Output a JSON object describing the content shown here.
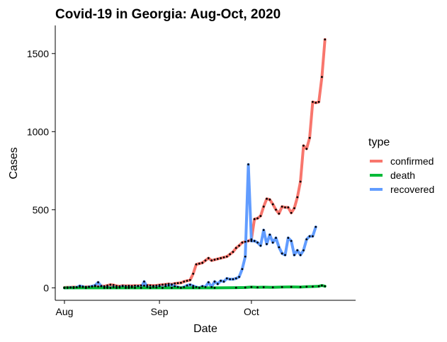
{
  "chart_data": {
    "type": "line",
    "title": "Covid-19 in Georgia: Aug-Oct, 2020",
    "xlabel": "Date",
    "ylabel": "Cases",
    "x_ticks": [
      {
        "label": "Aug",
        "value": "2020-08-01"
      },
      {
        "label": "Sep",
        "value": "2020-09-01"
      },
      {
        "label": "Oct",
        "value": "2020-10-01"
      }
    ],
    "y_ticks": [
      0,
      500,
      1000,
      1500
    ],
    "xlim": [
      "2020-07-29",
      "2020-11-04"
    ],
    "ylim": [
      -80,
      1680
    ],
    "grid": false,
    "legend": {
      "title": "type",
      "placement": "right",
      "entries": [
        "confirmed",
        "death",
        "recovered"
      ]
    },
    "colors": {
      "confirmed": "#F8766D",
      "death": "#00BA38",
      "recovered": "#619CFF"
    },
    "series": [
      {
        "name": "confirmed",
        "points": [
          [
            "2020-08-01",
            2
          ],
          [
            "2020-08-02",
            3
          ],
          [
            "2020-08-03",
            3
          ],
          [
            "2020-08-04",
            5
          ],
          [
            "2020-08-05",
            4
          ],
          [
            "2020-08-06",
            6
          ],
          [
            "2020-08-07",
            5
          ],
          [
            "2020-08-08",
            6
          ],
          [
            "2020-08-09",
            7
          ],
          [
            "2020-08-10",
            8
          ],
          [
            "2020-08-11",
            10
          ],
          [
            "2020-08-12",
            8
          ],
          [
            "2020-08-13",
            12
          ],
          [
            "2020-08-14",
            10
          ],
          [
            "2020-08-15",
            15
          ],
          [
            "2020-08-16",
            20
          ],
          [
            "2020-08-17",
            18
          ],
          [
            "2020-08-18",
            12
          ],
          [
            "2020-08-19",
            10
          ],
          [
            "2020-08-20",
            14
          ],
          [
            "2020-08-21",
            12
          ],
          [
            "2020-08-22",
            13
          ],
          [
            "2020-08-23",
            12
          ],
          [
            "2020-08-24",
            14
          ],
          [
            "2020-08-25",
            13
          ],
          [
            "2020-08-26",
            15
          ],
          [
            "2020-08-27",
            14
          ],
          [
            "2020-08-28",
            16
          ],
          [
            "2020-08-29",
            15
          ],
          [
            "2020-08-30",
            14
          ],
          [
            "2020-08-31",
            15
          ],
          [
            "2020-09-01",
            18
          ],
          [
            "2020-09-02",
            20
          ],
          [
            "2020-09-03",
            22
          ],
          [
            "2020-09-04",
            25
          ],
          [
            "2020-09-05",
            22
          ],
          [
            "2020-09-06",
            28
          ],
          [
            "2020-09-07",
            30
          ],
          [
            "2020-09-08",
            32
          ],
          [
            "2020-09-09",
            40
          ],
          [
            "2020-09-10",
            45
          ],
          [
            "2020-09-11",
            50
          ],
          [
            "2020-09-12",
            90
          ],
          [
            "2020-09-13",
            150
          ],
          [
            "2020-09-14",
            155
          ],
          [
            "2020-09-15",
            160
          ],
          [
            "2020-09-16",
            175
          ],
          [
            "2020-09-17",
            190
          ],
          [
            "2020-09-18",
            175
          ],
          [
            "2020-09-19",
            180
          ],
          [
            "2020-09-20",
            185
          ],
          [
            "2020-09-21",
            190
          ],
          [
            "2020-09-22",
            195
          ],
          [
            "2020-09-23",
            200
          ],
          [
            "2020-09-24",
            215
          ],
          [
            "2020-09-25",
            230
          ],
          [
            "2020-09-26",
            255
          ],
          [
            "2020-09-27",
            270
          ],
          [
            "2020-09-28",
            290
          ],
          [
            "2020-09-29",
            295
          ],
          [
            "2020-09-30",
            300
          ],
          [
            "2020-10-01",
            310
          ],
          [
            "2020-10-02",
            440
          ],
          [
            "2020-10-03",
            445
          ],
          [
            "2020-10-04",
            460
          ],
          [
            "2020-10-05",
            520
          ],
          [
            "2020-10-06",
            570
          ],
          [
            "2020-10-07",
            565
          ],
          [
            "2020-10-08",
            535
          ],
          [
            "2020-10-09",
            500
          ],
          [
            "2020-10-10",
            475
          ],
          [
            "2020-10-11",
            520
          ],
          [
            "2020-10-12",
            515
          ],
          [
            "2020-10-13",
            515
          ],
          [
            "2020-10-14",
            480
          ],
          [
            "2020-10-15",
            510
          ],
          [
            "2020-10-16",
            580
          ],
          [
            "2020-10-17",
            680
          ],
          [
            "2020-10-18",
            910
          ],
          [
            "2020-10-19",
            890
          ],
          [
            "2020-10-20",
            960
          ],
          [
            "2020-10-21",
            1190
          ],
          [
            "2020-10-22",
            1185
          ],
          [
            "2020-10-23",
            1190
          ],
          [
            "2020-10-24",
            1350
          ],
          [
            "2020-10-25",
            1590
          ]
        ]
      },
      {
        "name": "death",
        "points": [
          [
            "2020-08-01",
            0
          ],
          [
            "2020-08-08",
            0
          ],
          [
            "2020-08-15",
            0
          ],
          [
            "2020-08-22",
            0
          ],
          [
            "2020-08-29",
            0
          ],
          [
            "2020-09-05",
            0
          ],
          [
            "2020-09-12",
            0
          ],
          [
            "2020-09-19",
            0
          ],
          [
            "2020-09-26",
            1
          ],
          [
            "2020-09-29",
            2
          ],
          [
            "2020-10-01",
            5
          ],
          [
            "2020-10-03",
            3
          ],
          [
            "2020-10-05",
            4
          ],
          [
            "2020-10-08",
            3
          ],
          [
            "2020-10-11",
            5
          ],
          [
            "2020-10-14",
            6
          ],
          [
            "2020-10-17",
            5
          ],
          [
            "2020-10-19",
            7
          ],
          [
            "2020-10-21",
            8
          ],
          [
            "2020-10-23",
            10
          ],
          [
            "2020-10-24",
            15
          ],
          [
            "2020-10-25",
            10
          ]
        ]
      },
      {
        "name": "recovered",
        "points": [
          [
            "2020-08-01",
            0
          ],
          [
            "2020-08-02",
            0
          ],
          [
            "2020-08-03",
            2
          ],
          [
            "2020-08-04",
            0
          ],
          [
            "2020-08-05",
            3
          ],
          [
            "2020-08-06",
            12
          ],
          [
            "2020-08-07",
            8
          ],
          [
            "2020-08-08",
            0
          ],
          [
            "2020-08-09",
            5
          ],
          [
            "2020-08-10",
            10
          ],
          [
            "2020-08-11",
            15
          ],
          [
            "2020-08-12",
            35
          ],
          [
            "2020-08-13",
            10
          ],
          [
            "2020-08-14",
            0
          ],
          [
            "2020-08-15",
            5
          ],
          [
            "2020-08-16",
            0
          ],
          [
            "2020-08-17",
            5
          ],
          [
            "2020-08-18",
            0
          ],
          [
            "2020-08-19",
            2
          ],
          [
            "2020-08-20",
            10
          ],
          [
            "2020-08-21",
            0
          ],
          [
            "2020-08-22",
            5
          ],
          [
            "2020-08-23",
            3
          ],
          [
            "2020-08-24",
            0
          ],
          [
            "2020-08-25",
            10
          ],
          [
            "2020-08-26",
            0
          ],
          [
            "2020-08-27",
            40
          ],
          [
            "2020-08-28",
            5
          ],
          [
            "2020-08-29",
            0
          ],
          [
            "2020-08-30",
            5
          ],
          [
            "2020-08-31",
            2
          ],
          [
            "2020-09-01",
            10
          ],
          [
            "2020-09-02",
            0
          ],
          [
            "2020-09-03",
            10
          ],
          [
            "2020-09-04",
            15
          ],
          [
            "2020-09-05",
            20
          ],
          [
            "2020-09-06",
            10
          ],
          [
            "2020-09-07",
            5
          ],
          [
            "2020-09-08",
            0
          ],
          [
            "2020-09-09",
            5
          ],
          [
            "2020-09-10",
            15
          ],
          [
            "2020-09-11",
            20
          ],
          [
            "2020-09-12",
            12
          ],
          [
            "2020-09-13",
            5
          ],
          [
            "2020-09-14",
            0
          ],
          [
            "2020-09-15",
            10
          ],
          [
            "2020-09-16",
            5
          ],
          [
            "2020-09-17",
            35
          ],
          [
            "2020-09-18",
            5
          ],
          [
            "2020-09-19",
            40
          ],
          [
            "2020-09-20",
            25
          ],
          [
            "2020-09-21",
            45
          ],
          [
            "2020-09-22",
            40
          ],
          [
            "2020-09-23",
            60
          ],
          [
            "2020-09-24",
            55
          ],
          [
            "2020-09-25",
            55
          ],
          [
            "2020-09-26",
            60
          ],
          [
            "2020-09-27",
            70
          ],
          [
            "2020-09-28",
            120
          ],
          [
            "2020-09-29",
            200
          ],
          [
            "2020-09-30",
            790
          ],
          [
            "2020-10-01",
            300
          ],
          [
            "2020-10-02",
            300
          ],
          [
            "2020-10-03",
            290
          ],
          [
            "2020-10-04",
            270
          ],
          [
            "2020-10-05",
            370
          ],
          [
            "2020-10-06",
            280
          ],
          [
            "2020-10-07",
            340
          ],
          [
            "2020-10-08",
            290
          ],
          [
            "2020-10-09",
            320
          ],
          [
            "2020-10-10",
            260
          ],
          [
            "2020-10-11",
            220
          ],
          [
            "2020-10-12",
            210
          ],
          [
            "2020-10-13",
            320
          ],
          [
            "2020-10-14",
            300
          ],
          [
            "2020-10-15",
            210
          ],
          [
            "2020-10-16",
            240
          ],
          [
            "2020-10-17",
            210
          ],
          [
            "2020-10-18",
            240
          ],
          [
            "2020-10-19",
            310
          ],
          [
            "2020-10-20",
            330
          ],
          [
            "2020-10-21",
            330
          ],
          [
            "2020-10-22",
            390
          ]
        ]
      }
    ]
  }
}
